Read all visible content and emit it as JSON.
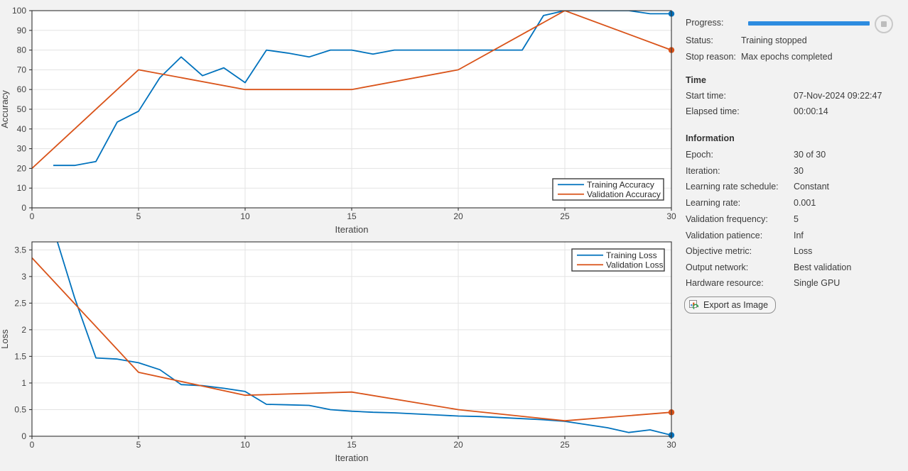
{
  "colors": {
    "training": "#0072BD",
    "validation": "#D95319",
    "progress_bar": "#2d8ce0",
    "plot_background": "#ffffff",
    "grid": "#e3e3e3",
    "axis": "#333333"
  },
  "panel": {
    "progress_label": "Progress:",
    "progress_percent": 100,
    "status_label": "Status:",
    "status_value": "Training stopped",
    "stop_reason_label": "Stop reason:",
    "stop_reason_value": "Max epochs completed",
    "time_header": "Time",
    "time_rows": [
      {
        "label": "Start time:",
        "value": "07-Nov-2024 09:22:47"
      },
      {
        "label": "Elapsed time:",
        "value": "00:00:14"
      }
    ],
    "info_header": "Information",
    "info_rows": [
      {
        "label": "Epoch:",
        "value": "30 of 30"
      },
      {
        "label": "Iteration:",
        "value": "30"
      },
      {
        "label": "Learning rate schedule:",
        "value": "Constant"
      },
      {
        "label": "Learning rate:",
        "value": "0.001"
      },
      {
        "label": "Validation frequency:",
        "value": "5"
      },
      {
        "label": "Validation patience:",
        "value": "Inf"
      },
      {
        "label": "Objective metric:",
        "value": "Loss"
      },
      {
        "label": "Output network:",
        "value": "Best validation"
      },
      {
        "label": "Hardware resource:",
        "value": "Single GPU"
      }
    ],
    "export_button_label": "Export as Image"
  },
  "chart_data": [
    {
      "type": "line",
      "title": "",
      "xlabel": "Iteration",
      "ylabel": "Accuracy",
      "xlim": [
        0,
        30
      ],
      "ylim": [
        0,
        100
      ],
      "xticks": [
        0,
        5,
        10,
        15,
        20,
        25,
        30
      ],
      "yticks": [
        0,
        10,
        20,
        30,
        40,
        50,
        60,
        70,
        80,
        90,
        100
      ],
      "grid": true,
      "legend_position": "bottom-right",
      "series": [
        {
          "name": "Training Accuracy",
          "color": "#0072BD",
          "end_marker": true,
          "x": [
            1,
            2,
            3,
            4,
            5,
            6,
            7,
            8,
            9,
            10,
            11,
            12,
            13,
            14,
            15,
            16,
            17,
            18,
            19,
            20,
            21,
            22,
            23,
            24,
            25,
            26,
            27,
            28,
            29,
            30
          ],
          "y": [
            21.5,
            21.5,
            23.5,
            43.5,
            49,
            66,
            76.5,
            67,
            71,
            63.5,
            80,
            78.5,
            76.5,
            80,
            80,
            78,
            80,
            80,
            80,
            80,
            80,
            80,
            80,
            97.5,
            100,
            100,
            100,
            100,
            98.4,
            98.4
          ]
        },
        {
          "name": "Validation Accuracy",
          "color": "#D95319",
          "end_marker": true,
          "x": [
            0,
            5,
            10,
            15,
            20,
            25,
            30
          ],
          "y": [
            20,
            70,
            60,
            60,
            70,
            100,
            80
          ]
        }
      ]
    },
    {
      "type": "line",
      "title": "",
      "xlabel": "Iteration",
      "ylabel": "Loss",
      "xlim": [
        0,
        30
      ],
      "ylim": [
        0,
        3.65
      ],
      "xticks": [
        0,
        5,
        10,
        15,
        20,
        25,
        30
      ],
      "yticks": [
        0,
        0.5,
        1,
        1.5,
        2,
        2.5,
        3,
        3.5
      ],
      "grid": true,
      "legend_position": "top-right",
      "series": [
        {
          "name": "Training Loss",
          "color": "#0072BD",
          "end_marker": true,
          "x": [
            1,
            2,
            3,
            4,
            5,
            6,
            7,
            8,
            9,
            10,
            11,
            12,
            13,
            14,
            15,
            16,
            17,
            18,
            19,
            20,
            21,
            22,
            23,
            24,
            25,
            26,
            27,
            28,
            29,
            30
          ],
          "y": [
            3.9,
            2.6,
            1.47,
            1.45,
            1.38,
            1.25,
            0.97,
            0.95,
            0.9,
            0.84,
            0.6,
            0.59,
            0.58,
            0.5,
            0.47,
            0.45,
            0.44,
            0.42,
            0.4,
            0.38,
            0.37,
            0.35,
            0.33,
            0.31,
            0.28,
            0.22,
            0.16,
            0.07,
            0.12,
            0.02
          ]
        },
        {
          "name": "Validation Loss",
          "color": "#D95319",
          "end_marker": true,
          "x": [
            0,
            5,
            10,
            15,
            20,
            25,
            30
          ],
          "y": [
            3.35,
            1.2,
            0.77,
            0.83,
            0.5,
            0.29,
            0.45
          ]
        }
      ]
    }
  ]
}
